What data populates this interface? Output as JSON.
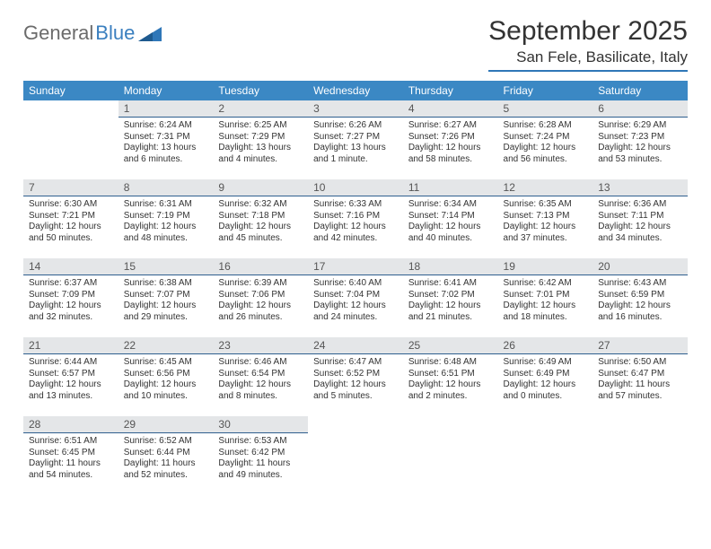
{
  "brand": {
    "part1": "General",
    "part2": "Blue"
  },
  "title": "September 2025",
  "location": "San Fele, Basilicate, Italy",
  "colors": {
    "header_bg": "#3b88c4",
    "header_text": "#ffffff",
    "daynum_bg": "#e4e6e8",
    "rule": "#2f5f8f",
    "brand_gray": "#6b6b6b",
    "brand_blue": "#3a7fbf"
  },
  "day_headers": [
    "Sunday",
    "Monday",
    "Tuesday",
    "Wednesday",
    "Thursday",
    "Friday",
    "Saturday"
  ],
  "weeks": [
    [
      {
        "n": "",
        "sr": "",
        "ss": "",
        "dl": ""
      },
      {
        "n": "1",
        "sr": "Sunrise: 6:24 AM",
        "ss": "Sunset: 7:31 PM",
        "dl": "Daylight: 13 hours and 6 minutes."
      },
      {
        "n": "2",
        "sr": "Sunrise: 6:25 AM",
        "ss": "Sunset: 7:29 PM",
        "dl": "Daylight: 13 hours and 4 minutes."
      },
      {
        "n": "3",
        "sr": "Sunrise: 6:26 AM",
        "ss": "Sunset: 7:27 PM",
        "dl": "Daylight: 13 hours and 1 minute."
      },
      {
        "n": "4",
        "sr": "Sunrise: 6:27 AM",
        "ss": "Sunset: 7:26 PM",
        "dl": "Daylight: 12 hours and 58 minutes."
      },
      {
        "n": "5",
        "sr": "Sunrise: 6:28 AM",
        "ss": "Sunset: 7:24 PM",
        "dl": "Daylight: 12 hours and 56 minutes."
      },
      {
        "n": "6",
        "sr": "Sunrise: 6:29 AM",
        "ss": "Sunset: 7:23 PM",
        "dl": "Daylight: 12 hours and 53 minutes."
      }
    ],
    [
      {
        "n": "7",
        "sr": "Sunrise: 6:30 AM",
        "ss": "Sunset: 7:21 PM",
        "dl": "Daylight: 12 hours and 50 minutes."
      },
      {
        "n": "8",
        "sr": "Sunrise: 6:31 AM",
        "ss": "Sunset: 7:19 PM",
        "dl": "Daylight: 12 hours and 48 minutes."
      },
      {
        "n": "9",
        "sr": "Sunrise: 6:32 AM",
        "ss": "Sunset: 7:18 PM",
        "dl": "Daylight: 12 hours and 45 minutes."
      },
      {
        "n": "10",
        "sr": "Sunrise: 6:33 AM",
        "ss": "Sunset: 7:16 PM",
        "dl": "Daylight: 12 hours and 42 minutes."
      },
      {
        "n": "11",
        "sr": "Sunrise: 6:34 AM",
        "ss": "Sunset: 7:14 PM",
        "dl": "Daylight: 12 hours and 40 minutes."
      },
      {
        "n": "12",
        "sr": "Sunrise: 6:35 AM",
        "ss": "Sunset: 7:13 PM",
        "dl": "Daylight: 12 hours and 37 minutes."
      },
      {
        "n": "13",
        "sr": "Sunrise: 6:36 AM",
        "ss": "Sunset: 7:11 PM",
        "dl": "Daylight: 12 hours and 34 minutes."
      }
    ],
    [
      {
        "n": "14",
        "sr": "Sunrise: 6:37 AM",
        "ss": "Sunset: 7:09 PM",
        "dl": "Daylight: 12 hours and 32 minutes."
      },
      {
        "n": "15",
        "sr": "Sunrise: 6:38 AM",
        "ss": "Sunset: 7:07 PM",
        "dl": "Daylight: 12 hours and 29 minutes."
      },
      {
        "n": "16",
        "sr": "Sunrise: 6:39 AM",
        "ss": "Sunset: 7:06 PM",
        "dl": "Daylight: 12 hours and 26 minutes."
      },
      {
        "n": "17",
        "sr": "Sunrise: 6:40 AM",
        "ss": "Sunset: 7:04 PM",
        "dl": "Daylight: 12 hours and 24 minutes."
      },
      {
        "n": "18",
        "sr": "Sunrise: 6:41 AM",
        "ss": "Sunset: 7:02 PM",
        "dl": "Daylight: 12 hours and 21 minutes."
      },
      {
        "n": "19",
        "sr": "Sunrise: 6:42 AM",
        "ss": "Sunset: 7:01 PM",
        "dl": "Daylight: 12 hours and 18 minutes."
      },
      {
        "n": "20",
        "sr": "Sunrise: 6:43 AM",
        "ss": "Sunset: 6:59 PM",
        "dl": "Daylight: 12 hours and 16 minutes."
      }
    ],
    [
      {
        "n": "21",
        "sr": "Sunrise: 6:44 AM",
        "ss": "Sunset: 6:57 PM",
        "dl": "Daylight: 12 hours and 13 minutes."
      },
      {
        "n": "22",
        "sr": "Sunrise: 6:45 AM",
        "ss": "Sunset: 6:56 PM",
        "dl": "Daylight: 12 hours and 10 minutes."
      },
      {
        "n": "23",
        "sr": "Sunrise: 6:46 AM",
        "ss": "Sunset: 6:54 PM",
        "dl": "Daylight: 12 hours and 8 minutes."
      },
      {
        "n": "24",
        "sr": "Sunrise: 6:47 AM",
        "ss": "Sunset: 6:52 PM",
        "dl": "Daylight: 12 hours and 5 minutes."
      },
      {
        "n": "25",
        "sr": "Sunrise: 6:48 AM",
        "ss": "Sunset: 6:51 PM",
        "dl": "Daylight: 12 hours and 2 minutes."
      },
      {
        "n": "26",
        "sr": "Sunrise: 6:49 AM",
        "ss": "Sunset: 6:49 PM",
        "dl": "Daylight: 12 hours and 0 minutes."
      },
      {
        "n": "27",
        "sr": "Sunrise: 6:50 AM",
        "ss": "Sunset: 6:47 PM",
        "dl": "Daylight: 11 hours and 57 minutes."
      }
    ],
    [
      {
        "n": "28",
        "sr": "Sunrise: 6:51 AM",
        "ss": "Sunset: 6:45 PM",
        "dl": "Daylight: 11 hours and 54 minutes."
      },
      {
        "n": "29",
        "sr": "Sunrise: 6:52 AM",
        "ss": "Sunset: 6:44 PM",
        "dl": "Daylight: 11 hours and 52 minutes."
      },
      {
        "n": "30",
        "sr": "Sunrise: 6:53 AM",
        "ss": "Sunset: 6:42 PM",
        "dl": "Daylight: 11 hours and 49 minutes."
      },
      {
        "n": "",
        "sr": "",
        "ss": "",
        "dl": ""
      },
      {
        "n": "",
        "sr": "",
        "ss": "",
        "dl": ""
      },
      {
        "n": "",
        "sr": "",
        "ss": "",
        "dl": ""
      },
      {
        "n": "",
        "sr": "",
        "ss": "",
        "dl": ""
      }
    ]
  ]
}
